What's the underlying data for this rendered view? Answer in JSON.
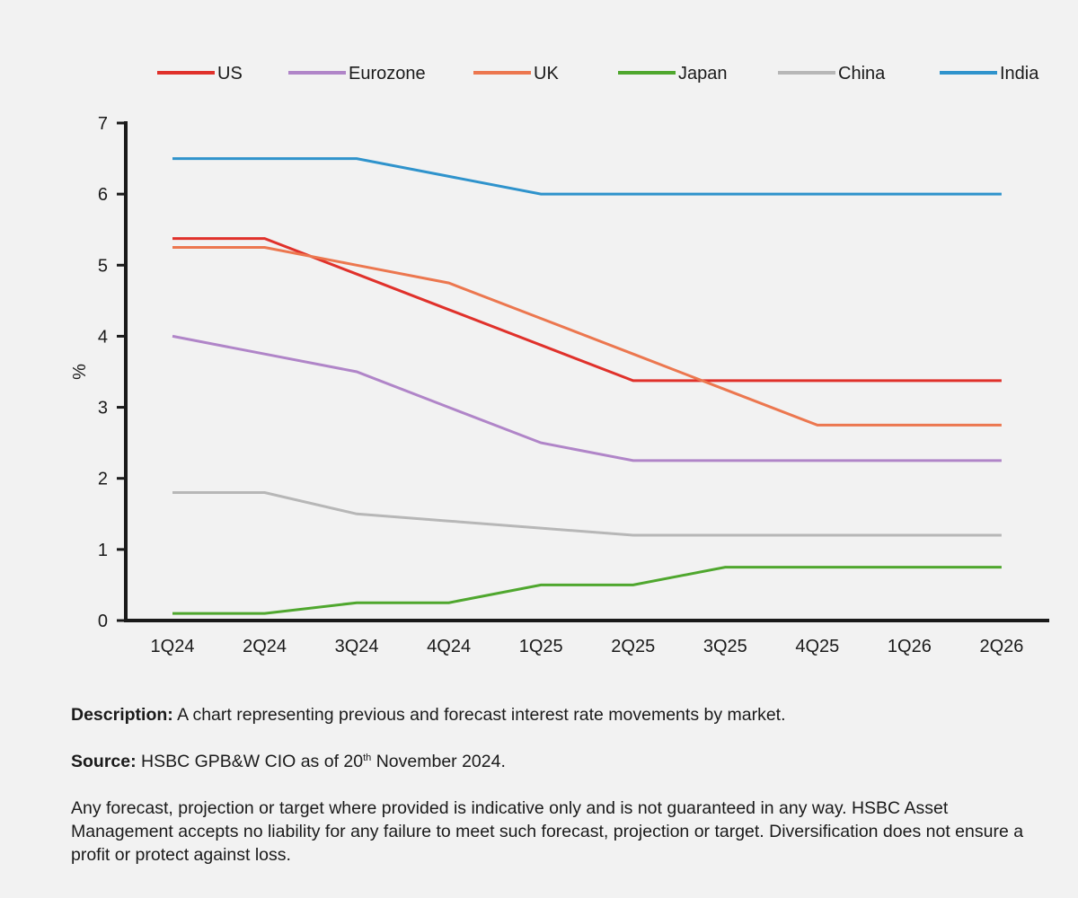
{
  "chart_data": {
    "type": "line",
    "title": "",
    "xlabel": "",
    "ylabel": "%",
    "ylim": [
      0,
      7
    ],
    "yticks": [
      "0",
      "1",
      "2",
      "3",
      "4",
      "5",
      "6",
      "7"
    ],
    "categories": [
      "1Q24",
      "2Q24",
      "3Q24",
      "4Q24",
      "1Q25",
      "2Q25",
      "3Q25",
      "4Q25",
      "1Q26",
      "2Q26"
    ],
    "grid": false,
    "legend_position": "top",
    "series": [
      {
        "name": "US",
        "color": "#e0312b",
        "values": [
          5.375,
          5.375,
          4.875,
          4.375,
          3.875,
          3.375,
          3.375,
          3.375,
          3.375,
          3.375
        ]
      },
      {
        "name": "Eurozone",
        "color": "#b085c8",
        "values": [
          4.0,
          3.75,
          3.5,
          3.0,
          2.5,
          2.25,
          2.25,
          2.25,
          2.25,
          2.25
        ]
      },
      {
        "name": "UK",
        "color": "#ec774f",
        "values": [
          5.25,
          5.25,
          5.0,
          4.75,
          4.25,
          3.75,
          3.25,
          2.75,
          2.75,
          2.75
        ]
      },
      {
        "name": "Japan",
        "color": "#4fa72e",
        "values": [
          0.1,
          0.1,
          0.25,
          0.25,
          0.5,
          0.5,
          0.75,
          0.75,
          0.75,
          0.75
        ]
      },
      {
        "name": "China",
        "color": "#b7b7b7",
        "values": [
          1.8,
          1.8,
          1.5,
          1.4,
          1.3,
          1.2,
          1.2,
          1.2,
          1.2,
          1.2
        ]
      },
      {
        "name": "India",
        "color": "#2f93cc",
        "values": [
          6.5,
          6.5,
          6.5,
          6.25,
          6.0,
          6.0,
          6.0,
          6.0,
          6.0,
          6.0
        ]
      }
    ]
  },
  "notes": {
    "description_label": "Description:",
    "description_text": " A chart representing previous and forecast interest rate movements by market.",
    "source_label": "Source:",
    "source_text_before": " HSBC GPB&W CIO as of 20",
    "source_sup": "th",
    "source_text_after": " November 2024.",
    "disclaimer": "Any forecast, projection or target where provided is indicative only and is not guaranteed in any way. HSBC Asset Management accepts no liability for any failure to meet such forecast, projection or target. Diversification does not ensure a profit or protect against loss."
  }
}
